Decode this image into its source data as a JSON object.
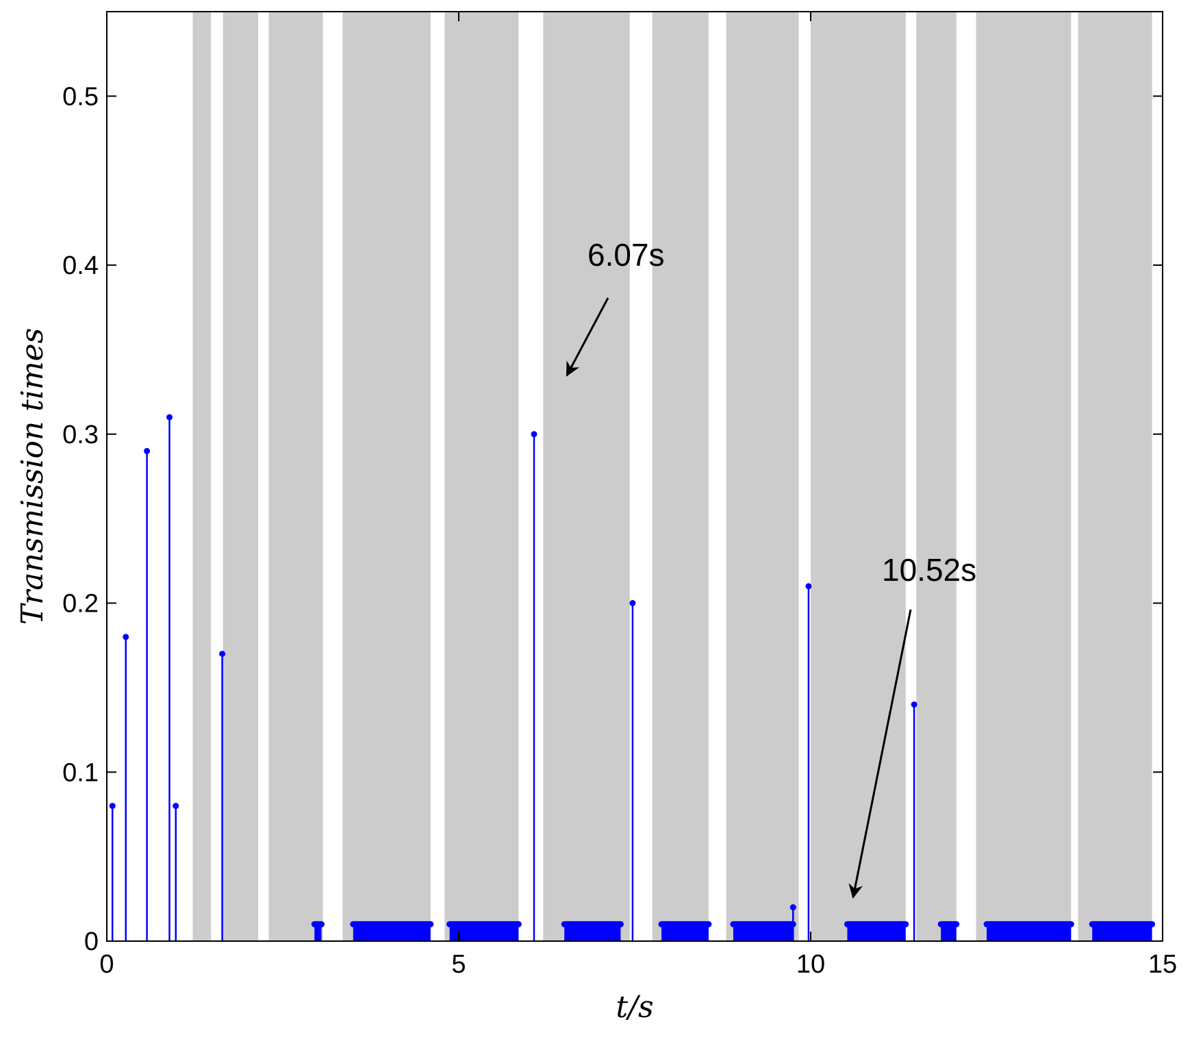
{
  "chart_data": {
    "type": "stem",
    "title": "",
    "xlabel": "t/s",
    "ylabel": "Transmission times",
    "xlim": [
      0,
      15
    ],
    "ylim": [
      0,
      0.55
    ],
    "xticks": [
      0,
      5,
      10,
      15
    ],
    "xtick_labels": [
      "0",
      "5",
      "10",
      "15"
    ],
    "yticks": [
      0,
      0.1,
      0.2,
      0.3,
      0.4,
      0.5
    ],
    "ytick_labels": [
      "0",
      "0.1",
      "0.2",
      "0.3",
      "0.4",
      "0.5"
    ],
    "grid": false,
    "stem_color": "#0000ff",
    "shade_color": "#cccccc",
    "shaded_intervals": [
      [
        1.22,
        1.48
      ],
      [
        1.65,
        2.15
      ],
      [
        2.3,
        3.07
      ],
      [
        3.35,
        4.6
      ],
      [
        4.8,
        5.85
      ],
      [
        6.2,
        7.43
      ],
      [
        7.75,
        8.55
      ],
      [
        8.8,
        9.83
      ],
      [
        10.0,
        11.35
      ],
      [
        11.5,
        12.07
      ],
      [
        12.35,
        13.7
      ],
      [
        13.8,
        14.85
      ]
    ],
    "stems": [
      {
        "x": 0.08,
        "y": 0.08
      },
      {
        "x": 0.27,
        "y": 0.18
      },
      {
        "x": 0.57,
        "y": 0.29
      },
      {
        "x": 0.89,
        "y": 0.31
      },
      {
        "x": 0.98,
        "y": 0.08
      },
      {
        "x": 1.64,
        "y": 0.17
      },
      {
        "x": 6.07,
        "y": 0.3
      },
      {
        "x": 7.47,
        "y": 0.2
      },
      {
        "x": 9.75,
        "y": 0.02
      },
      {
        "x": 9.97,
        "y": 0.21
      },
      {
        "x": 11.47,
        "y": 0.14
      }
    ],
    "dense_runs": [
      {
        "start": 2.95,
        "end": 3.05,
        "y": 0.01
      },
      {
        "start": 3.5,
        "end": 4.6,
        "y": 0.01
      },
      {
        "start": 4.87,
        "end": 5.85,
        "y": 0.01
      },
      {
        "start": 6.5,
        "end": 7.3,
        "y": 0.01
      },
      {
        "start": 7.88,
        "end": 8.55,
        "y": 0.01
      },
      {
        "start": 8.9,
        "end": 9.75,
        "y": 0.01
      },
      {
        "start": 10.52,
        "end": 11.35,
        "y": 0.01
      },
      {
        "start": 11.85,
        "end": 12.07,
        "y": 0.01
      },
      {
        "start": 12.5,
        "end": 13.7,
        "y": 0.01
      },
      {
        "start": 14.0,
        "end": 14.85,
        "y": 0.01
      }
    ],
    "annotations": [
      {
        "text": "6.07s",
        "points_to": {
          "x": 6.07,
          "y": 0.3
        }
      },
      {
        "text": "10.52s",
        "points_to": {
          "x": 10.52,
          "y": 0.01
        }
      }
    ]
  }
}
